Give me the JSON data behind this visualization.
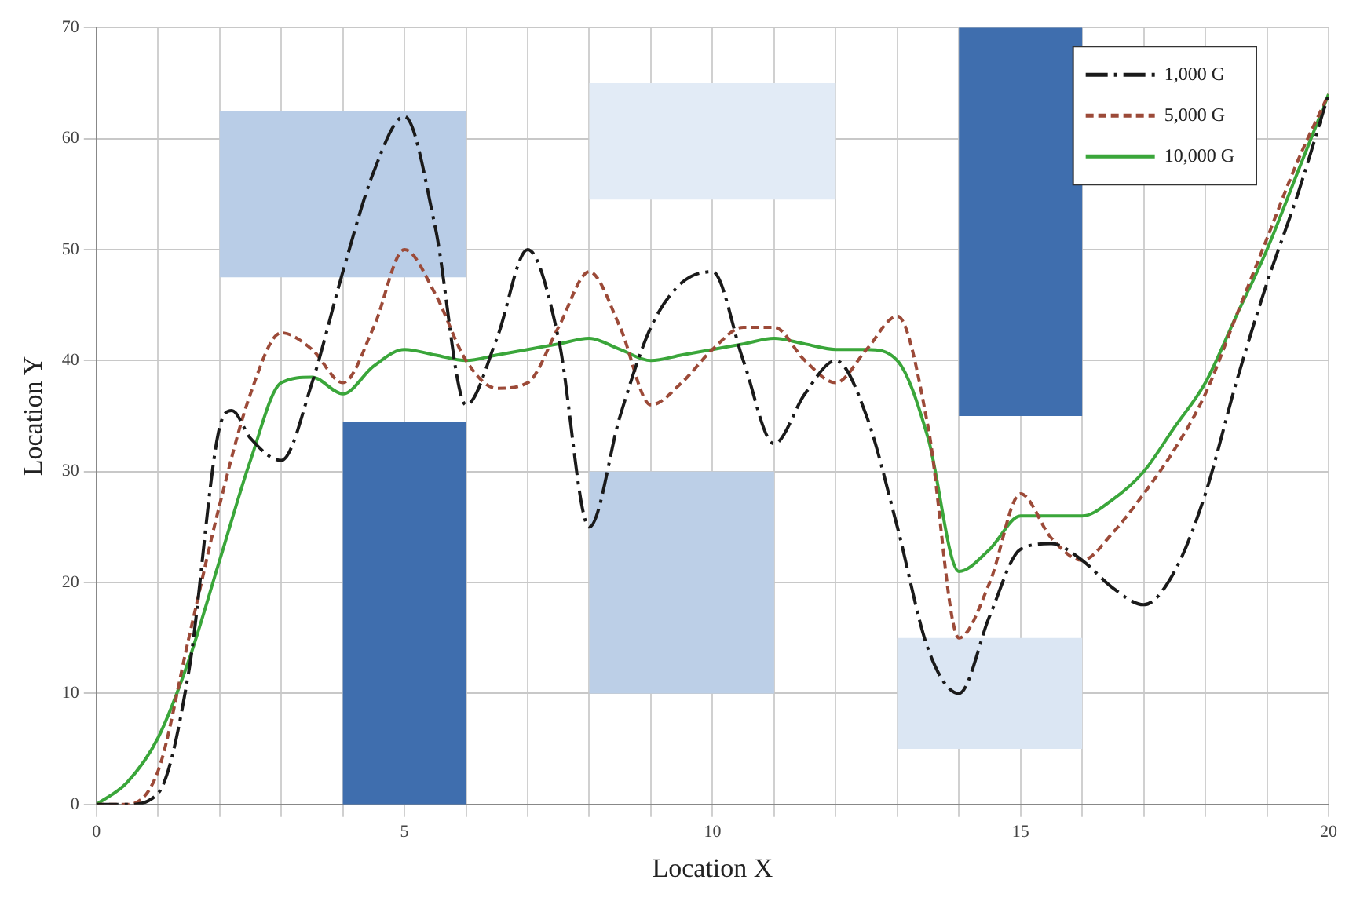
{
  "chart_data": {
    "type": "line",
    "xlabel": "Location X",
    "ylabel": "Location Y",
    "xlim": [
      0,
      20
    ],
    "ylim": [
      0,
      70
    ],
    "xticks": [
      0,
      {
        "value": 1,
        "label": null
      },
      {
        "value": 2,
        "label": null
      },
      {
        "value": 3,
        "label": null
      },
      {
        "value": 4,
        "label": null
      },
      5,
      {
        "value": 6,
        "label": null
      },
      {
        "value": 7,
        "label": null
      },
      {
        "value": 8,
        "label": null
      },
      {
        "value": 9,
        "label": null
      },
      10,
      {
        "value": 11,
        "label": null
      },
      {
        "value": 12,
        "label": null
      },
      {
        "value": 13,
        "label": null
      },
      {
        "value": 14,
        "label": null
      },
      15,
      {
        "value": 16,
        "label": null
      },
      {
        "value": 17,
        "label": null
      },
      {
        "value": 18,
        "label": null
      },
      {
        "value": 19,
        "label": null
      },
      20
    ],
    "yticks": [
      0,
      10,
      20,
      30,
      40,
      50,
      60,
      70
    ],
    "grid": true,
    "legend": "top right",
    "marker": "none",
    "series": [
      {
        "type": "area",
        "color": "#b9cde7",
        "x": [
          2,
          2,
          6,
          6,
          2
        ],
        "values": [
          47.5,
          62.5,
          62.5,
          47.5,
          47.5
        ]
      },
      {
        "type": "area",
        "color": "#e2ebf6",
        "x": [
          8,
          8,
          12,
          12,
          8
        ],
        "values": [
          54.5,
          65,
          65,
          54.5,
          54.5
        ]
      },
      {
        "type": "area",
        "color": "#3f6eae",
        "x": [
          4,
          4,
          6,
          6,
          4
        ],
        "values": [
          0,
          34.5,
          34.5,
          0,
          0
        ]
      },
      {
        "type": "area",
        "color": "#bccfe7",
        "x": [
          8,
          8,
          11,
          11,
          8
        ],
        "values": [
          10,
          30,
          30,
          10,
          10
        ]
      },
      {
        "type": "area",
        "color": "#3f6eae",
        "x": [
          14,
          14,
          16,
          16,
          14
        ],
        "values": [
          35,
          70,
          70,
          35,
          35
        ]
      },
      {
        "type": "area",
        "color": "#dbe6f3",
        "x": [
          13,
          13,
          16,
          16,
          13
        ],
        "values": [
          5,
          15,
          15,
          5,
          5
        ]
      },
      {
        "name": "1,000 G",
        "color": "#1a1a1a",
        "line_style": "dashdot",
        "x": [
          0,
          0.5,
          1,
          1.5,
          2,
          2.2,
          2.5,
          3,
          3.5,
          4,
          4.5,
          5,
          5.5,
          6,
          6.5,
          7,
          7.5,
          8,
          8.5,
          9,
          9.5,
          10,
          10.5,
          11,
          11.5,
          12,
          12.5,
          13,
          13.5,
          14,
          14.5,
          15,
          15.5,
          16,
          16.5,
          17,
          17.5,
          18,
          18.5,
          19,
          19.5,
          20
        ],
        "values": [
          0,
          0,
          1,
          12,
          34,
          35.5,
          33,
          31,
          38,
          48,
          57,
          62,
          52,
          36,
          42,
          50,
          42,
          25,
          35,
          43,
          47,
          48,
          40,
          32.5,
          37,
          40,
          35,
          25,
          14,
          10,
          17,
          23,
          23.5,
          22,
          19.5,
          18,
          21,
          28,
          38,
          47,
          55,
          64
        ]
      },
      {
        "name": "5,000 G",
        "color": "#9c4a38",
        "line_style": "dashed",
        "x": [
          0,
          0.5,
          1,
          1.5,
          2,
          2.5,
          3,
          3.5,
          4,
          4.5,
          5,
          5.5,
          6,
          6.5,
          7,
          7.5,
          8,
          8.5,
          9,
          9.5,
          10,
          10.5,
          11,
          11.5,
          12,
          12.5,
          13,
          13.5,
          14,
          14.5,
          15,
          15.5,
          16,
          16.5,
          17,
          17.5,
          18,
          18.5,
          19,
          19.5,
          20
        ],
        "values": [
          0,
          0,
          3,
          15,
          27,
          37,
          42.5,
          41,
          38,
          43,
          50,
          46,
          40,
          37.5,
          38,
          43,
          48,
          43,
          36,
          38,
          41,
          43,
          43,
          40,
          38,
          41,
          44,
          34,
          15,
          20,
          28,
          24,
          22,
          24.5,
          28,
          32,
          37,
          44,
          51,
          58,
          64
        ]
      },
      {
        "name": "10,000 G",
        "color": "#3aa63a",
        "line_style": "solid",
        "x": [
          0,
          0.5,
          1,
          1.5,
          2,
          2.5,
          3,
          3.5,
          4,
          4.5,
          5,
          5.5,
          6,
          6.5,
          7,
          7.5,
          8,
          8.5,
          9,
          9.5,
          10,
          10.5,
          11,
          11.5,
          12,
          12.5,
          13,
          13.5,
          14,
          14.5,
          15,
          15.5,
          16,
          16.5,
          17,
          17.5,
          18,
          18.5,
          19,
          19.5,
          20
        ],
        "values": [
          0,
          2,
          6,
          13,
          22,
          31,
          38,
          38.5,
          37,
          39.5,
          41,
          40.5,
          40,
          40.5,
          41,
          41.5,
          42,
          41,
          40,
          40.5,
          41,
          41.5,
          42,
          41.5,
          41,
          41,
          40,
          33,
          21,
          23,
          26,
          26,
          26,
          27.5,
          30,
          34,
          38,
          44,
          50,
          57,
          64
        ]
      }
    ]
  }
}
